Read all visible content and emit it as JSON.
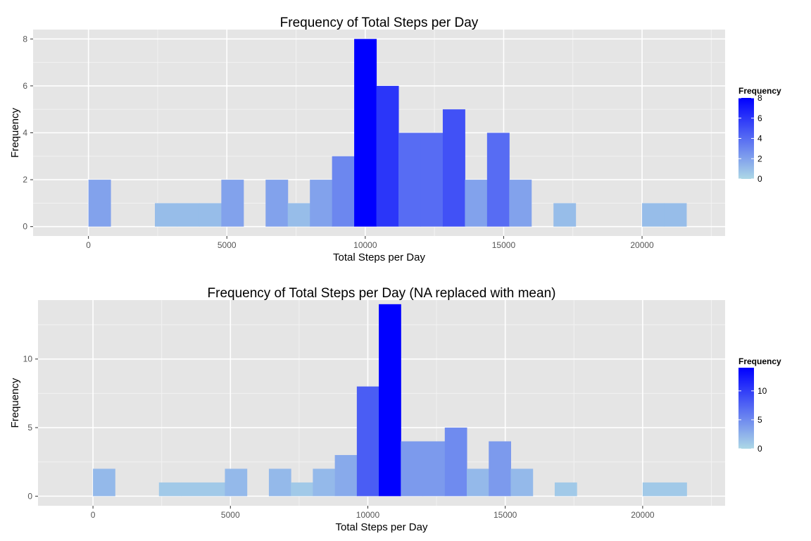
{
  "chart_data": [
    {
      "type": "bar",
      "title": "Frequency of Total Steps per Day",
      "xlabel": "Total Steps per Day",
      "ylabel": "Frequency",
      "xlim": [
        -2000,
        23000
      ],
      "ylim": [
        -0.4,
        8.4
      ],
      "xticks": [
        0,
        5000,
        10000,
        15000,
        20000
      ],
      "yticks": [
        0,
        2,
        4,
        6,
        8
      ],
      "xtick_labels": [
        "0",
        "5000",
        "10000",
        "15000",
        "20000"
      ],
      "ytick_labels": [
        "0",
        "2",
        "4",
        "6",
        "8"
      ],
      "bin_width": 800,
      "bin_start": 0,
      "values": [
        2,
        0,
        0,
        1,
        1,
        1,
        2,
        0,
        2,
        1,
        2,
        3,
        8,
        6,
        4,
        4,
        5,
        2,
        4,
        2,
        0,
        1,
        0,
        0,
        0,
        1,
        1
      ],
      "grid": true,
      "legend": {
        "title": "Frequency",
        "position": "right",
        "min": 0,
        "max": 8,
        "ticks": [
          0,
          2,
          4,
          6,
          8
        ],
        "labels": [
          "0",
          "2",
          "4",
          "6",
          "8"
        ],
        "color_low": "#add8e6",
        "color_high": "#0000ff"
      }
    },
    {
      "type": "bar",
      "title": "Frequency of Total Steps per Day (NA replaced with mean)",
      "xlabel": "Total Steps per Day",
      "ylabel": "Frequency",
      "xlim": [
        -2000,
        23000
      ],
      "ylim": [
        -0.7,
        14.3
      ],
      "xticks": [
        0,
        5000,
        10000,
        15000,
        20000
      ],
      "yticks": [
        0,
        5,
        10
      ],
      "xtick_labels": [
        "0",
        "5000",
        "10000",
        "15000",
        "20000"
      ],
      "ytick_labels": [
        "0",
        "5",
        "10"
      ],
      "bin_width": 800,
      "bin_start": 0,
      "values": [
        2,
        0,
        0,
        1,
        1,
        1,
        2,
        0,
        2,
        1,
        2,
        3,
        8,
        14,
        4,
        4,
        5,
        2,
        4,
        2,
        0,
        1,
        0,
        0,
        0,
        1,
        1
      ],
      "grid": true,
      "legend": {
        "title": "Frequency",
        "position": "right",
        "min": 0,
        "max": 14,
        "ticks": [
          0,
          5,
          10
        ],
        "labels": [
          "0",
          "5",
          "10"
        ],
        "color_low": "#add8e6",
        "color_high": "#0000ff"
      }
    }
  ],
  "colors": {
    "panel_background": "#e5e5e5",
    "major_grid": "#ffffff",
    "minor_grid": "#f2f2f2",
    "axis_text": "#555555",
    "title_text": "#000000"
  }
}
